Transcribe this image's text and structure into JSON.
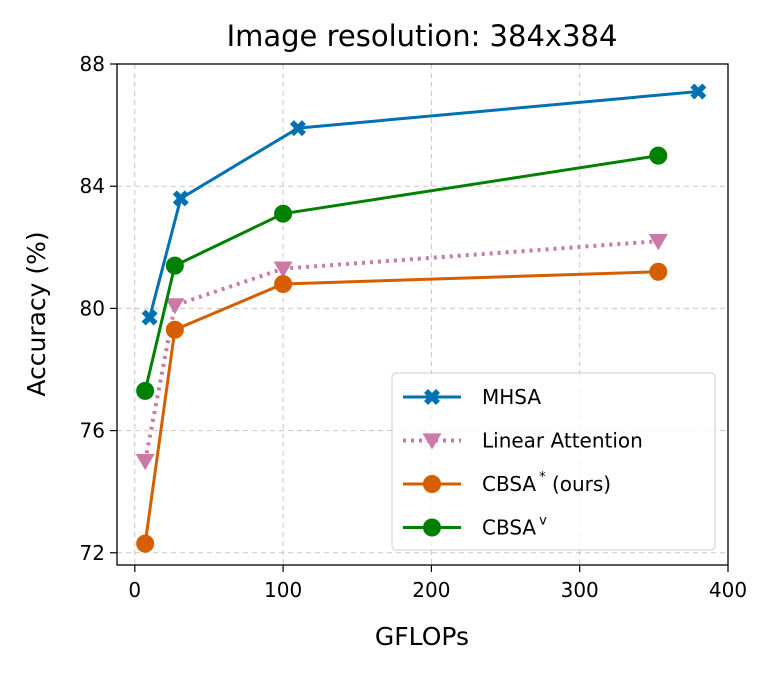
{
  "chart_data": {
    "type": "line",
    "title": "Image resolution: 384x384",
    "xlabel": "GFLOPs",
    "ylabel": "Accuracy (%)",
    "xlim": [
      -12,
      400
    ],
    "ylim": [
      71.6,
      88
    ],
    "xticks": [
      0,
      100,
      200,
      300,
      400
    ],
    "yticks": [
      72,
      76,
      80,
      84,
      88
    ],
    "grid": true,
    "legend_position": "lower-right",
    "series": [
      {
        "name": "MHSA",
        "marker": "x",
        "line": "solid",
        "color": "#0072B2",
        "x": [
          10,
          31,
          110,
          380
        ],
        "y": [
          79.7,
          83.6,
          85.9,
          87.1
        ]
      },
      {
        "name": "Linear Attention",
        "marker": "triangle-down",
        "line": "dotted",
        "color": "#CC79A7",
        "x": [
          7,
          27,
          100,
          353
        ],
        "y": [
          75.0,
          80.1,
          81.3,
          82.2
        ]
      },
      {
        "name": "CBSA",
        "name_superscript": "*",
        "name_suffix": " (ours)",
        "marker": "circle",
        "line": "solid",
        "color": "#D55E00",
        "x": [
          7,
          27,
          100,
          353
        ],
        "y": [
          72.3,
          79.3,
          80.8,
          81.2
        ]
      },
      {
        "name": "CBSA",
        "name_superscript": "v",
        "name_suffix": "",
        "marker": "circle",
        "line": "solid",
        "color": "#008000",
        "x": [
          7,
          27,
          100,
          353
        ],
        "y": [
          77.3,
          81.4,
          83.1,
          85.0
        ]
      }
    ]
  }
}
